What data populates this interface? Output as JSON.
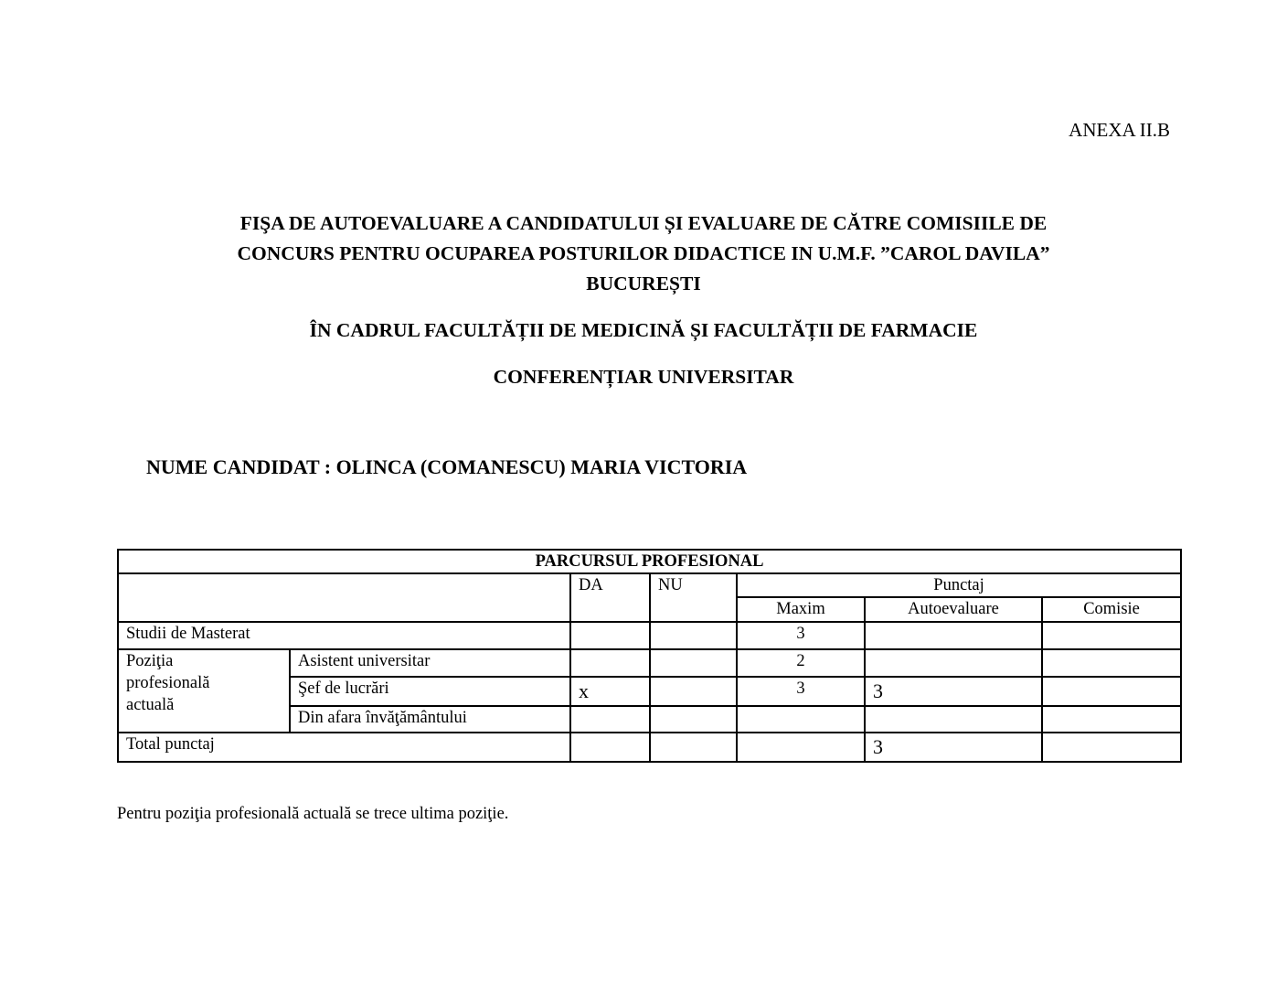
{
  "annex": "ANEXA II.B",
  "title": {
    "line1": "FIŞA DE AUTOEVALUARE A CANDIDATULUI ȘI EVALUARE DE CĂTRE COMISIILE DE",
    "line2": "CONCURS PENTRU OCUPAREA POSTURILOR DIDACTICE IN U.M.F. ”CAROL DAVILA”",
    "line3": "BUCUREȘTI",
    "faculty": "ÎN CADRUL FACULTĂȚII DE MEDICINĂ ȘI  FACULTĂȚII DE FARMACIE",
    "position": "CONFERENȚIAR UNIVERSITAR"
  },
  "candidate": "NUME CANDIDAT : OLINCA (COMANESCU) MARIA VICTORIA",
  "table": {
    "title": "PARCURSUL PROFESIONAL",
    "headers": {
      "da": "DA",
      "nu": "NU",
      "punctaj": "Punctaj",
      "maxim": "Maxim",
      "autoevaluare": "Autoevaluare",
      "comisie": "Comisie"
    },
    "studii": {
      "label": "Studii de Masterat",
      "da": "",
      "nu": "",
      "maxim": "3",
      "auto": "",
      "comisie": ""
    },
    "pozitia_label": "Poziţia\nprofesională\nactuală",
    "pozitia_label_lines": [
      "Poziţia",
      "profesională",
      "actuală"
    ],
    "rows": [
      {
        "label": "Asistent universitar",
        "da": "",
        "nu": "",
        "maxim": "2",
        "auto": "",
        "comisie": ""
      },
      {
        "label": "Şef de lucrări",
        "da": "x",
        "nu": "",
        "maxim": "3",
        "auto": "3",
        "comisie": ""
      },
      {
        "label": "Din afara învăţământului",
        "da": "",
        "nu": "",
        "maxim": "",
        "auto": "",
        "comisie": ""
      }
    ],
    "total": {
      "label": "Total punctaj",
      "auto": "3"
    }
  },
  "note": "Pentru poziţia profesională actuală se trece ultima poziţie."
}
